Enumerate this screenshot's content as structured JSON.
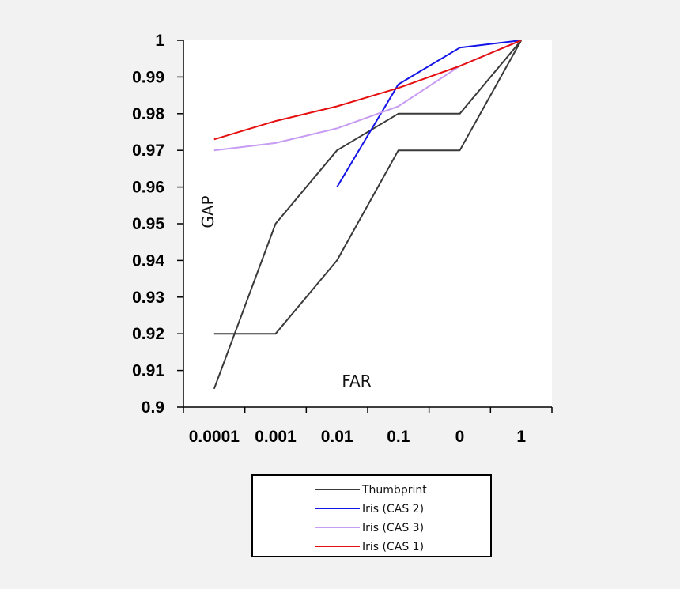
{
  "chart_data": {
    "type": "line",
    "title": "",
    "xlabel": "FAR",
    "ylabel": "GAP",
    "categories": [
      "0.0001",
      "0.001",
      "0.01",
      "0.1",
      "0",
      "1"
    ],
    "ylim": [
      0.9,
      1
    ],
    "yticks": [
      "0.9",
      "0.91",
      "0.92",
      "0.93",
      "0.94",
      "0.95",
      "0.96",
      "0.97",
      "0.98",
      "0.99",
      "1"
    ],
    "grid": false,
    "legend_position": "bottom",
    "series": [
      {
        "name": "Thumbprint",
        "color": "#3a3a3a",
        "points": [
          [
            0.5,
            0.905
          ],
          [
            1.5,
            0.95
          ],
          [
            2.5,
            0.97
          ],
          [
            3.5,
            0.98
          ],
          [
            4.5,
            0.98
          ],
          [
            5.5,
            1.0
          ]
        ]
      },
      {
        "name": "",
        "legend": false,
        "color": "#3a3a3a",
        "points": [
          [
            0.5,
            0.92
          ],
          [
            1.5,
            0.92
          ],
          [
            2.5,
            0.94
          ],
          [
            3.5,
            0.97
          ],
          [
            4.5,
            0.97
          ],
          [
            5.5,
            1.0
          ]
        ]
      },
      {
        "name": "Iris (CAS 2)",
        "color": "#1414e6",
        "points": [
          [
            2.5,
            0.96
          ],
          [
            3.5,
            0.988
          ],
          [
            4.5,
            0.998
          ],
          [
            5.5,
            1.0
          ]
        ]
      },
      {
        "name": "Iris (CAS 3)",
        "color": "#c79cf2",
        "points": [
          [
            0.5,
            0.97
          ],
          [
            1.5,
            0.972
          ],
          [
            2.5,
            0.976
          ],
          [
            3.5,
            0.982
          ],
          [
            4.5,
            0.993
          ],
          [
            5.5,
            1.0
          ]
        ]
      },
      {
        "name": "Iris (CAS 1)",
        "color": "#e60f0f",
        "points": [
          [
            0.5,
            0.973
          ],
          [
            1.5,
            0.978
          ],
          [
            2.5,
            0.982
          ],
          [
            3.5,
            0.987
          ],
          [
            4.5,
            0.993
          ],
          [
            5.5,
            1.0
          ]
        ]
      }
    ]
  }
}
